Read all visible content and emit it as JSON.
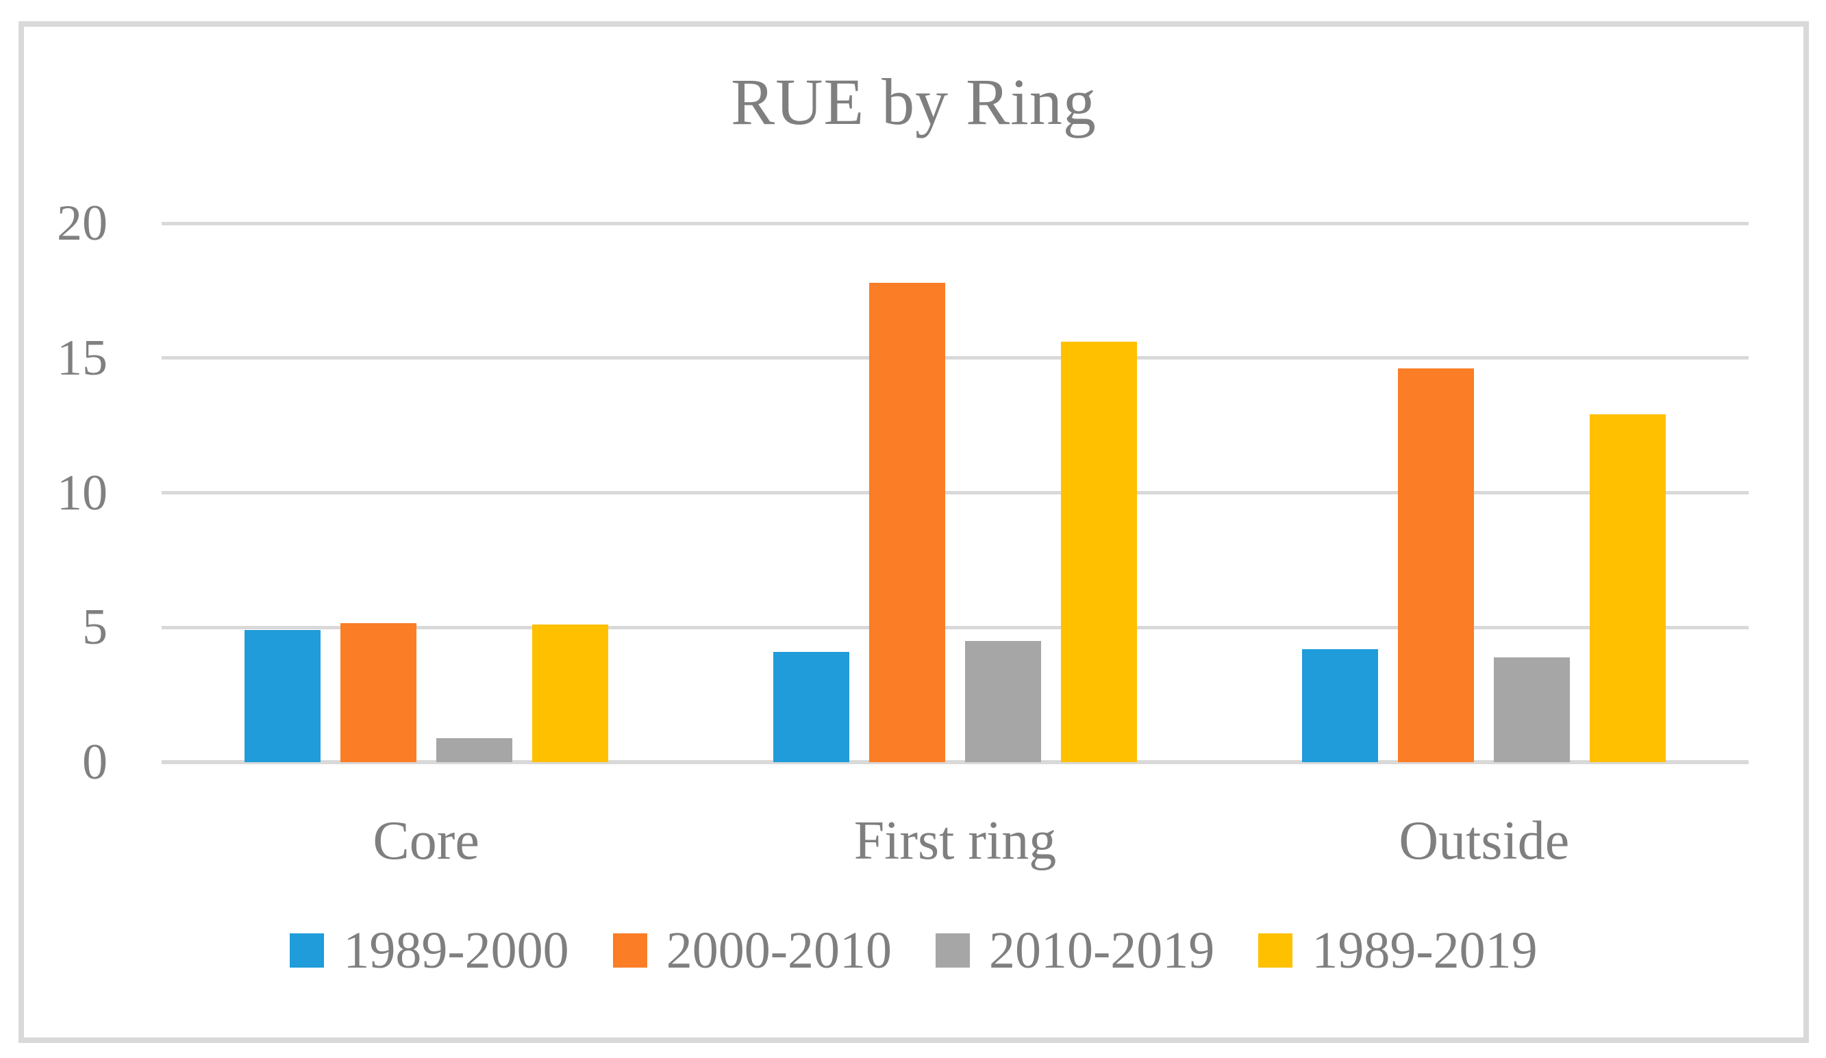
{
  "figure": {
    "background": "#FFFFFF",
    "frame_border_color": "#D9D9D9"
  },
  "chart_data": {
    "type": "bar",
    "title": "RUE by Ring",
    "categories": [
      "Core",
      "First ring",
      "Outside"
    ],
    "series": [
      {
        "name": "1989-2000",
        "color": "#1F9CD9",
        "values": [
          4.9,
          4.1,
          4.2
        ]
      },
      {
        "name": "2000-2010",
        "color": "#FB7D26",
        "values": [
          5.15,
          17.8,
          14.6
        ]
      },
      {
        "name": "2010-2019",
        "color": "#A6A6A6",
        "values": [
          0.9,
          4.5,
          3.9
        ]
      },
      {
        "name": "1989-2019",
        "color": "#FFC000",
        "values": [
          5.1,
          15.6,
          12.9
        ]
      }
    ],
    "xlabel": "",
    "ylabel": "",
    "ylim": [
      0,
      20
    ],
    "yticks": [
      0,
      5,
      10,
      15,
      20
    ],
    "grid": true,
    "gridline_color": "#D9D9D9",
    "axis_line_color": "#D9D9D9",
    "text_color": "#7F7F7F",
    "legend_position": "bottom"
  }
}
